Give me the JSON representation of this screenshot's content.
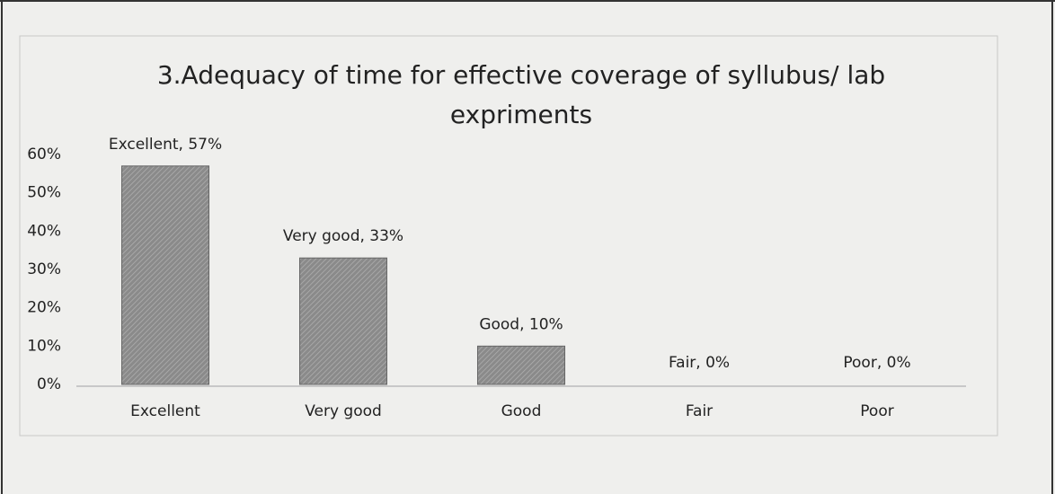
{
  "chart_data": {
    "type": "bar",
    "title": "3.Adequacy of time for effective coverage of syllubus/ lab expriments",
    "categories": [
      "Excellent",
      "Very good",
      "Good",
      "Fair",
      "Poor"
    ],
    "values": [
      57,
      33,
      10,
      0,
      0
    ],
    "value_labels": [
      "Excellent, 57%",
      "Very good, 33%",
      "Good, 10%",
      "Fair, 0%",
      "Poor, 0%"
    ],
    "color": "#8a8a8a",
    "ylim": [
      0,
      60
    ],
    "yticks": [
      {
        "value": 0,
        "label": "0%"
      },
      {
        "value": 10,
        "label": "10%"
      },
      {
        "value": 20,
        "label": "20%"
      },
      {
        "value": 30,
        "label": "30%"
      },
      {
        "value": 40,
        "label": "40%"
      },
      {
        "value": 50,
        "label": "50%"
      },
      {
        "value": 60,
        "label": "60%"
      }
    ]
  }
}
